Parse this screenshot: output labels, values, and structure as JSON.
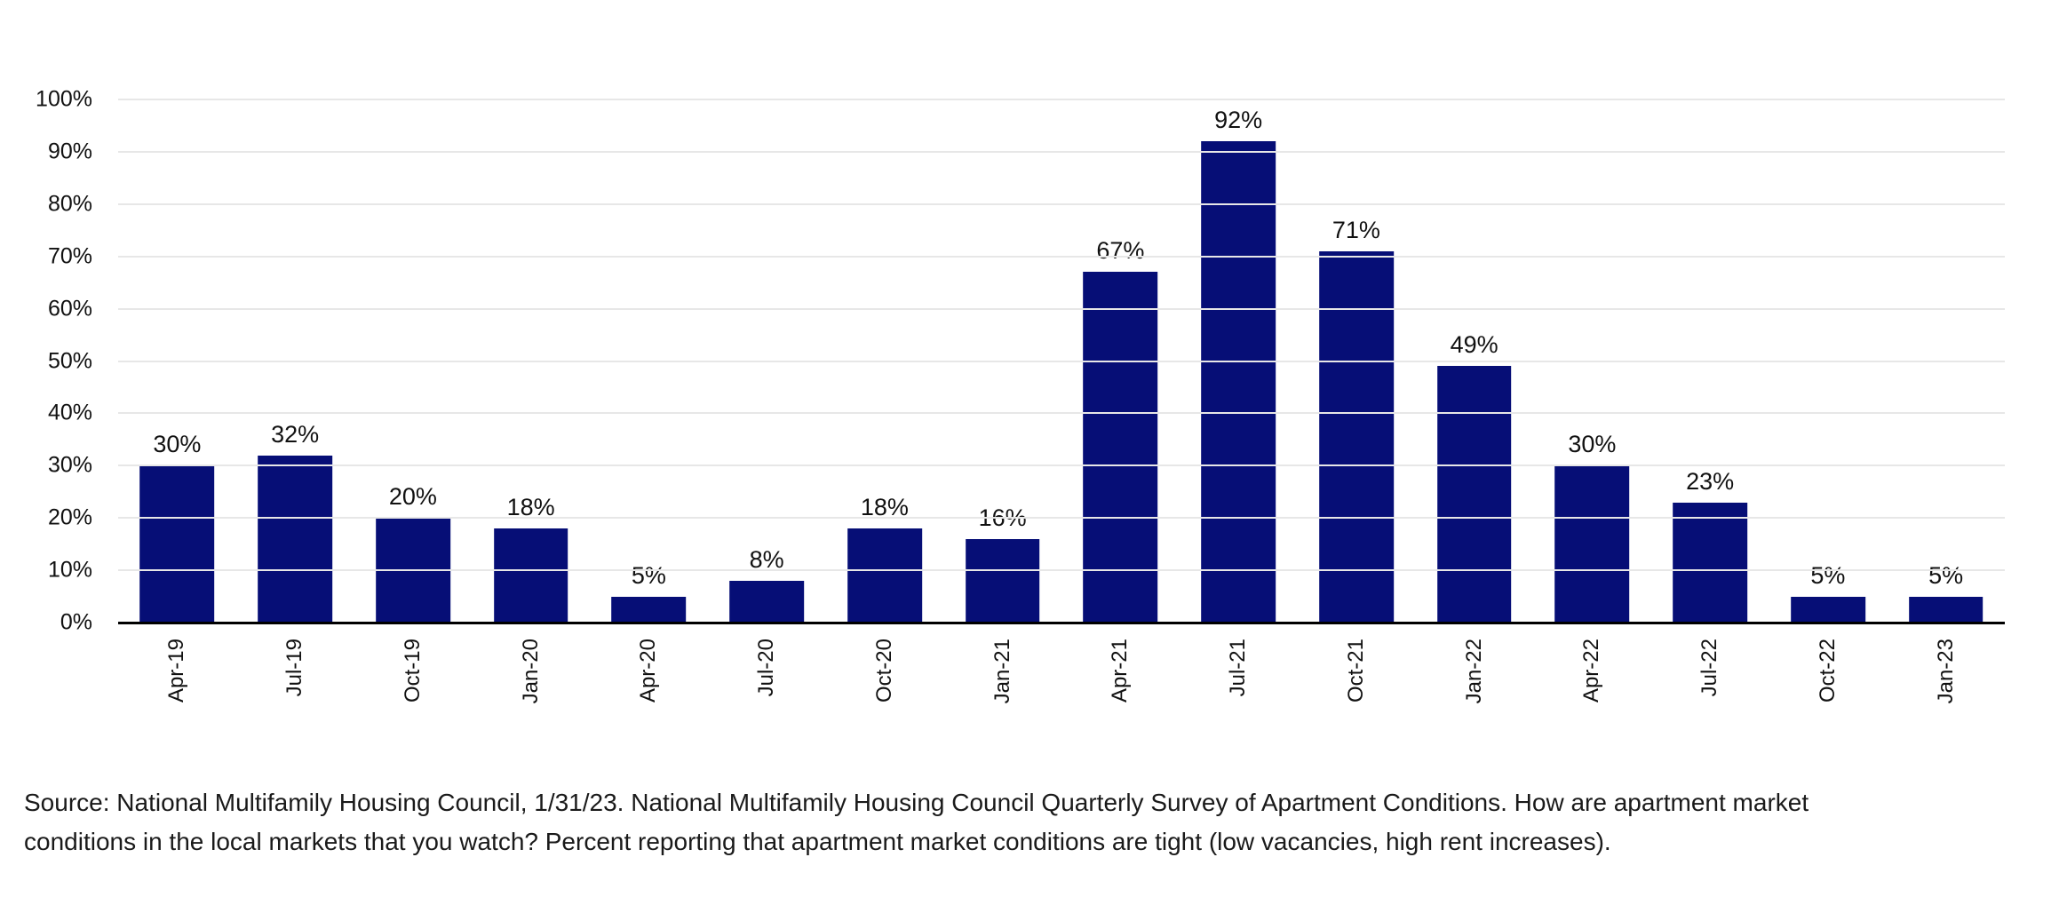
{
  "chart_data": {
    "type": "bar",
    "title": "",
    "xlabel": "",
    "ylabel": "",
    "categories": [
      "Apr-19",
      "Jul-19",
      "Oct-19",
      "Jan-20",
      "Apr-20",
      "Jul-20",
      "Oct-20",
      "Jan-21",
      "Apr-21",
      "Jul-21",
      "Oct-21",
      "Jan-22",
      "Apr-22",
      "Jul-22",
      "Oct-22",
      "Jan-23"
    ],
    "values": [
      30,
      32,
      20,
      18,
      5,
      8,
      18,
      16,
      67,
      92,
      71,
      49,
      30,
      23,
      5,
      5
    ],
    "value_labels": [
      "30%",
      "32%",
      "20%",
      "18%",
      "5%",
      "8%",
      "18%",
      "16%",
      "67%",
      "92%",
      "71%",
      "49%",
      "30%",
      "23%",
      "5%",
      "5%"
    ],
    "y_tick_labels": [
      "0%",
      "10%",
      "20%",
      "30%",
      "40%",
      "50%",
      "60%",
      "70%",
      "80%",
      "90%",
      "100%"
    ],
    "ylim": [
      0,
      100
    ],
    "grid": "horizontal-only",
    "legend": "none"
  },
  "colors": {
    "bar": "#060E76",
    "gridline": "#E7E7E7",
    "axis_line": "#000000",
    "tick_text": "#111111",
    "source_text": "#1A1A1A",
    "background": "#FFFFFF"
  },
  "source": {
    "line1": "Source: National Multifamily Housing Council, 1/31/23. National Multifamily Housing Council Quarterly Survey of Apartment Conditions. How are apartment market",
    "line2": "conditions in the local markets that you watch? Percent reporting that apartment market conditions are tight (low vacancies, high rent increases)."
  }
}
